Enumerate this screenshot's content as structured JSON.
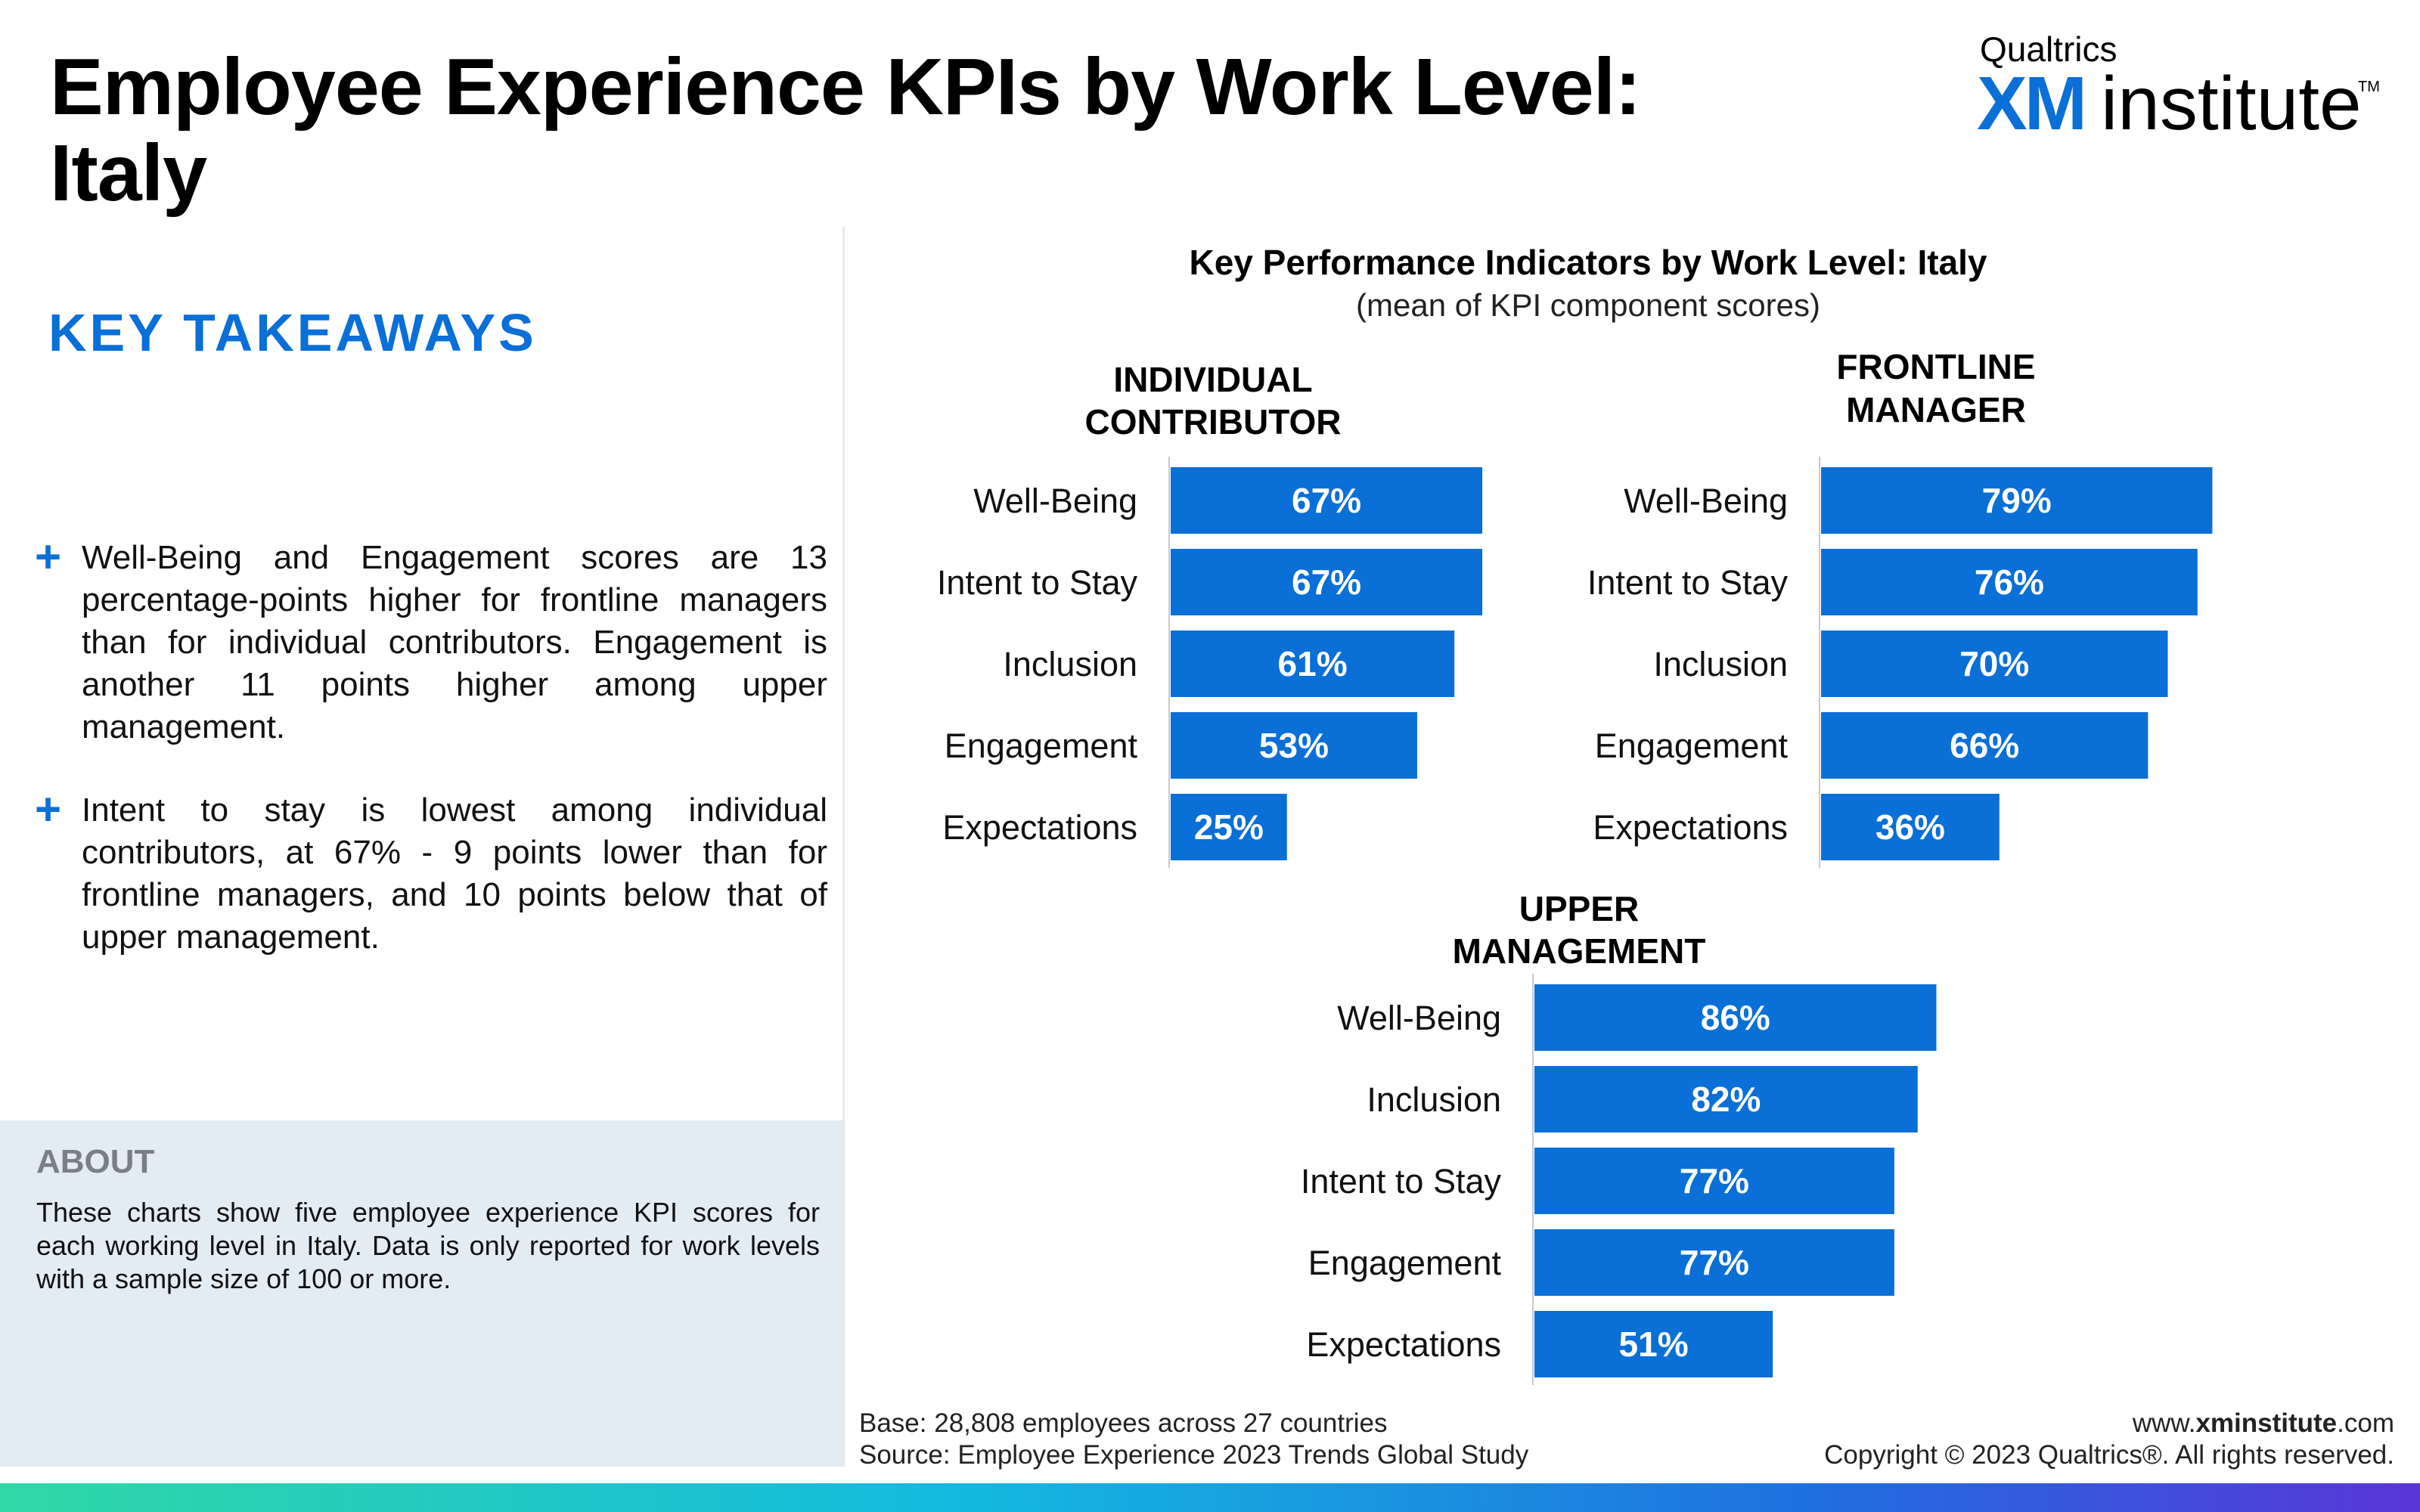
{
  "page": {
    "title": "Employee Experience KPIs by Work Level: Italy"
  },
  "logo": {
    "top_text": "Qualtrics",
    "xm": "XM",
    "institute": "institute",
    "tm": "TM"
  },
  "takeaways": {
    "heading": "KEY TAKEAWAYS",
    "bullet_symbol": "+",
    "items": [
      "Well-Being and Engagement scores are 13 percentage-points higher for frontline managers than for individual contributors. Engagement is another 11 points higher among upper management.",
      "Intent to stay is lowest among individual contributors, at 67% - 9 points lower than for frontline managers, and 10 points below that of upper management."
    ]
  },
  "about": {
    "title": "ABOUT",
    "text": "These charts show five employee experience KPI scores for each working level in Italy. Data is only reported for work levels with a sample size of 100 or more."
  },
  "footer": {
    "base": "Base: 28,808 employees across 27 countries",
    "source": "Source: Employee Experience 2023 Trends Global Study",
    "url_prefix": "www.",
    "url_bold": "xminstitute",
    "url_suffix": ".com",
    "copyright": "Copyright © 2023 Qualtrics®. All rights reserved."
  },
  "colors": {
    "bar": "#0a6fd6",
    "accent": "#0a6fd6",
    "about_bg": "#e3ebf3"
  },
  "chart_data": {
    "type": "bar",
    "orientation": "horizontal",
    "title": "Key Performance Indicators by Work Level: Italy",
    "subtitle": "(mean of KPI component scores)",
    "unit": "%",
    "panels": [
      {
        "name": "INDIVIDUAL CONTRIBUTOR",
        "categories": [
          "Well-Being",
          "Intent to Stay",
          "Inclusion",
          "Engagement",
          "Expectations"
        ],
        "values": [
          67,
          67,
          61,
          53,
          25
        ]
      },
      {
        "name": "FRONTLINE MANAGER",
        "categories": [
          "Well-Being",
          "Intent to Stay",
          "Inclusion",
          "Engagement",
          "Expectations"
        ],
        "values": [
          79,
          76,
          70,
          66,
          36
        ]
      },
      {
        "name": "UPPER MANAGEMENT",
        "categories": [
          "Well-Being",
          "Inclusion",
          "Intent to Stay",
          "Engagement",
          "Expectations"
        ],
        "values": [
          86,
          82,
          77,
          77,
          51
        ]
      }
    ]
  }
}
